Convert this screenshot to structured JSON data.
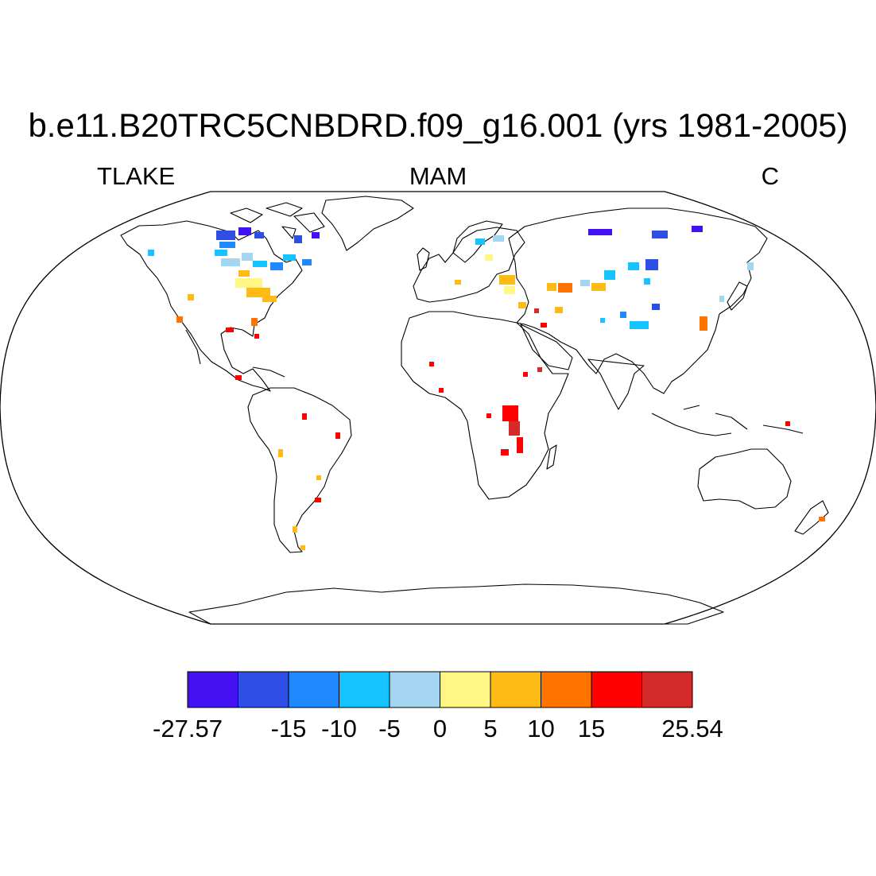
{
  "title": "b.e11.B20TRC5CNBDRD.f09_g16.001 (yrs 1981-2005)",
  "subtitle_left": "TLAKE",
  "subtitle_center": "MAM",
  "subtitle_right": "C",
  "colorbar": {
    "colors": [
      "#4411f2",
      "#2f4ee6",
      "#2189ff",
      "#14c3ff",
      "#a5d6f1",
      "#fff683",
      "#ffbb15",
      "#ff7400",
      "#ff0000",
      "#d42a2a"
    ],
    "labels": [
      "-27.57",
      "-15",
      "-10",
      "-5",
      "0",
      "5",
      "10",
      "15",
      "25.54"
    ],
    "label_bins": [
      0,
      2,
      3,
      4,
      5,
      6,
      7,
      8,
      10
    ]
  }
}
